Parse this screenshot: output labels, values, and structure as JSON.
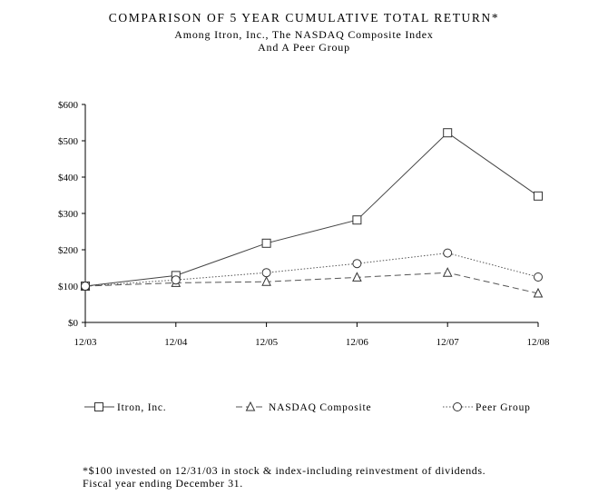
{
  "chart_data": {
    "type": "line",
    "title": "COMPARISON OF 5 YEAR CUMULATIVE TOTAL RETURN*",
    "subtitle": [
      "Among Itron, Inc., The NASDAQ Composite Index",
      "And A Peer Group"
    ],
    "categories": [
      "12/03",
      "12/04",
      "12/05",
      "12/06",
      "12/07",
      "12/08"
    ],
    "y_ticks": [
      "$0",
      "$100",
      "$200",
      "$300",
      "$400",
      "$500",
      "$600"
    ],
    "ylim": [
      0,
      600
    ],
    "grid": false,
    "legend_position": "bottom",
    "series": [
      {
        "name": "Itron, Inc.",
        "marker": "square",
        "dash": "solid",
        "color": "#444444",
        "values": [
          100,
          129,
          218,
          282,
          522,
          348
        ]
      },
      {
        "name": "NASDAQ Composite",
        "marker": "triangle",
        "dash": "dashed",
        "color": "#555555",
        "values": [
          100,
          109,
          112,
          124,
          137,
          80
        ]
      },
      {
        "name": "Peer Group",
        "marker": "circle",
        "dash": "dotted",
        "color": "#555555",
        "values": [
          100,
          117,
          137,
          162,
          191,
          125
        ]
      }
    ]
  },
  "footnote": [
    "*$100 invested on 12/31/03 in stock & index-including reinvestment of dividends.",
    "Fiscal year ending December 31."
  ]
}
